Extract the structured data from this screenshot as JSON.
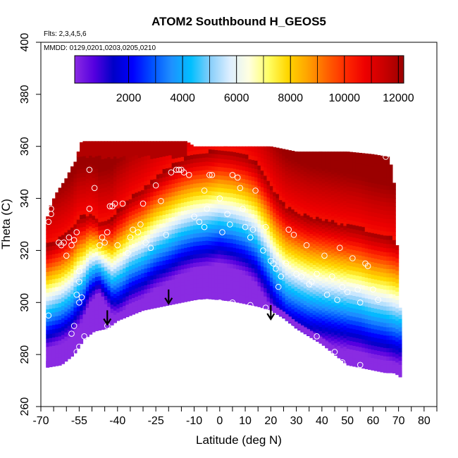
{
  "chart_data": {
    "type": "heatmap",
    "title": "ATOM2 Southbound H_GEOS5",
    "flights_note": "Flts: 2,3,4,5,6",
    "dates_note": "MMDD: 0129,0201,0203,0205,0210",
    "xlabel": "Latitude (deg N)",
    "ylabel": "Theta (C)",
    "xlim": [
      -70,
      85
    ],
    "ylim": [
      260,
      400
    ],
    "x_ticks": [
      -70,
      -55,
      -40,
      -25,
      -10,
      0,
      10,
      20,
      30,
      40,
      50,
      60,
      70,
      80
    ],
    "x_minor_ticks": [
      -65,
      -60,
      -50,
      -45,
      -35,
      -30,
      -20,
      -15,
      -5,
      5,
      15,
      25,
      35,
      45,
      55,
      65,
      75,
      85
    ],
    "y_ticks": [
      260,
      280,
      300,
      320,
      340,
      360,
      380,
      400
    ],
    "colorbar": {
      "range": [
        0,
        12200
      ],
      "ticks": [
        2000,
        4000,
        6000,
        8000,
        10000,
        12000
      ],
      "colors": [
        "#8a2be2",
        "#5500e0",
        "#0000c8",
        "#0000ff",
        "#0050ff",
        "#1e90ff",
        "#00bfff",
        "#87cefa",
        "#dceeff",
        "#ffffe0",
        "#ffff66",
        "#ffd700",
        "#ffa500",
        "#ff6400",
        "#ff2a00",
        "#ee0000",
        "#c80000",
        "#9b0000"
      ]
    },
    "field": {
      "description": "Altitude (m) on latitude/theta cross-section",
      "lat_range": [
        -68,
        71
      ],
      "bottom_boundary": [
        [
          -68,
          275
        ],
        [
          -62,
          276
        ],
        [
          -57,
          280
        ],
        [
          -53,
          286
        ],
        [
          -49,
          289
        ],
        [
          -44,
          290
        ],
        [
          -40,
          293
        ],
        [
          -35,
          295
        ],
        [
          -30,
          297
        ],
        [
          -25,
          298
        ],
        [
          -20,
          299
        ],
        [
          -15,
          300
        ],
        [
          -10,
          301
        ],
        [
          -5,
          301.5
        ],
        [
          0,
          301
        ],
        [
          5,
          300.5
        ],
        [
          10,
          299.5
        ],
        [
          15,
          298.5
        ],
        [
          20,
          297
        ],
        [
          25,
          294
        ],
        [
          30,
          290
        ],
        [
          35,
          287
        ],
        [
          40,
          284
        ],
        [
          45,
          280
        ],
        [
          50,
          276
        ],
        [
          55,
          275
        ],
        [
          60,
          274
        ],
        [
          65,
          273
        ],
        [
          68,
          273
        ],
        [
          70,
          272
        ],
        [
          71,
          271
        ]
      ],
      "top_boundary": [
        [
          -68,
          331
        ],
        [
          -66,
          338
        ],
        [
          -64,
          342
        ],
        [
          -62,
          345
        ],
        [
          -60,
          348
        ],
        [
          -58,
          352
        ],
        [
          -56,
          355
        ],
        [
          -55,
          360
        ],
        [
          -54,
          362
        ],
        [
          -45,
          362
        ],
        [
          -35,
          362
        ],
        [
          -25,
          362
        ],
        [
          -13,
          362
        ],
        [
          -10,
          360
        ],
        [
          0,
          360
        ],
        [
          10,
          360
        ],
        [
          20,
          360
        ],
        [
          30,
          358
        ],
        [
          40,
          358
        ],
        [
          50,
          358
        ],
        [
          60,
          357
        ],
        [
          66,
          356
        ],
        [
          68,
          350
        ],
        [
          69,
          330
        ],
        [
          70,
          310
        ],
        [
          71,
          290
        ]
      ],
      "dip_lat": -47,
      "tropo_mid": [
        [
          -68,
          302
        ],
        [
          -62,
          305
        ],
        [
          -58,
          308
        ],
        [
          -56,
          311
        ],
        [
          -53,
          314
        ],
        [
          -51,
          317
        ],
        [
          -48,
          318
        ],
        [
          -45,
          316
        ],
        [
          -42,
          314
        ],
        [
          -38,
          317
        ],
        [
          -35,
          320
        ],
        [
          -30,
          323
        ],
        [
          -25,
          327
        ],
        [
          -20,
          330
        ],
        [
          -15,
          333
        ],
        [
          -10,
          335
        ],
        [
          -5,
          336
        ],
        [
          0,
          337
        ],
        [
          5,
          336
        ],
        [
          10,
          334
        ],
        [
          14,
          331
        ],
        [
          18,
          325
        ],
        [
          22,
          318
        ],
        [
          26,
          313
        ],
        [
          30,
          311
        ],
        [
          35,
          309
        ],
        [
          40,
          308
        ],
        [
          45,
          307
        ],
        [
          50,
          306
        ],
        [
          55,
          305
        ],
        [
          60,
          303
        ],
        [
          65,
          302
        ],
        [
          70,
          300
        ]
      ],
      "tropo_width": [
        [
          -68,
          20
        ],
        [
          -55,
          21
        ],
        [
          -47,
          14
        ],
        [
          -40,
          20
        ],
        [
          -20,
          22
        ],
        [
          0,
          22
        ],
        [
          20,
          24
        ],
        [
          40,
          24
        ],
        [
          70,
          24
        ]
      ]
    },
    "sample_points": [
      [
        -67,
        331
      ],
      [
        -66,
        336
      ],
      [
        -66,
        334
      ],
      [
        -63,
        323
      ],
      [
        -62,
        322
      ],
      [
        -61,
        323
      ],
      [
        -59,
        325
      ],
      [
        -60,
        318
      ],
      [
        -58,
        322
      ],
      [
        -57,
        324
      ],
      [
        -56,
        327
      ],
      [
        -55,
        312
      ],
      [
        -55,
        308
      ],
      [
        -56,
        303
      ],
      [
        -55,
        300
      ],
      [
        -54,
        302
      ],
      [
        -57,
        291
      ],
      [
        -55,
        283
      ],
      [
        -56,
        281
      ],
      [
        -53,
        287
      ],
      [
        -51,
        336
      ],
      [
        -51,
        351
      ],
      [
        -49,
        344
      ],
      [
        -47,
        322
      ],
      [
        -46,
        325
      ],
      [
        -45,
        323
      ],
      [
        -44,
        327
      ],
      [
        -43,
        337
      ],
      [
        -42,
        337
      ],
      [
        -41,
        338
      ],
      [
        -40,
        322
      ],
      [
        -38,
        338
      ],
      [
        -36,
        319
      ],
      [
        -35,
        325
      ],
      [
        -34,
        328
      ],
      [
        -32,
        327
      ],
      [
        -31,
        330
      ],
      [
        -30,
        338
      ],
      [
        -29,
        323
      ],
      [
        -27,
        321
      ],
      [
        -25,
        345
      ],
      [
        -23,
        339
      ],
      [
        -21,
        326
      ],
      [
        -19,
        350
      ],
      [
        -17,
        351
      ],
      [
        -16,
        351
      ],
      [
        -15,
        351
      ],
      [
        -14,
        350
      ],
      [
        -12,
        349
      ],
      [
        -10,
        333
      ],
      [
        -8,
        331
      ],
      [
        -6,
        329
      ],
      [
        -6,
        343
      ],
      [
        -5,
        336
      ],
      [
        -4,
        349
      ],
      [
        -3,
        349
      ],
      [
        0,
        340
      ],
      [
        1,
        327
      ],
      [
        3,
        334
      ],
      [
        4,
        330
      ],
      [
        5,
        349
      ],
      [
        7,
        348
      ],
      [
        8,
        344
      ],
      [
        9,
        336
      ],
      [
        10,
        329
      ],
      [
        12,
        325
      ],
      [
        13,
        328
      ],
      [
        14,
        343
      ],
      [
        17,
        320
      ],
      [
        18,
        329
      ],
      [
        20,
        316
      ],
      [
        21,
        315
      ],
      [
        22,
        313
      ],
      [
        23,
        306
      ],
      [
        24,
        310
      ],
      [
        26,
        315
      ],
      [
        27,
        328
      ],
      [
        29,
        326
      ],
      [
        30,
        311
      ],
      [
        32,
        310
      ],
      [
        34,
        322
      ],
      [
        35,
        307
      ],
      [
        36,
        308
      ],
      [
        38,
        311
      ],
      [
        41,
        318
      ],
      [
        42,
        303
      ],
      [
        44,
        310
      ],
      [
        46,
        301
      ],
      [
        47,
        321
      ],
      [
        48,
        306
      ],
      [
        50,
        304
      ],
      [
        52,
        317
      ],
      [
        54,
        305
      ],
      [
        55,
        300
      ],
      [
        57,
        315
      ],
      [
        58,
        314
      ],
      [
        60,
        305
      ],
      [
        62,
        301
      ],
      [
        65,
        356
      ],
      [
        -44,
        291
      ],
      [
        -38,
        292
      ],
      [
        -30,
        294
      ],
      [
        -22,
        296
      ],
      [
        -8,
        300
      ],
      [
        0,
        300
      ],
      [
        5,
        300
      ],
      [
        12,
        299
      ],
      [
        18,
        298
      ],
      [
        22,
        293
      ],
      [
        28,
        290
      ],
      [
        38,
        287
      ],
      [
        45,
        281
      ],
      [
        48,
        277
      ],
      [
        55,
        276
      ],
      [
        -67,
        295
      ],
      [
        -58,
        288
      ]
    ],
    "arrows": [
      [
        -44,
        297
      ],
      [
        -20,
        305
      ],
      [
        20,
        299
      ]
    ]
  }
}
